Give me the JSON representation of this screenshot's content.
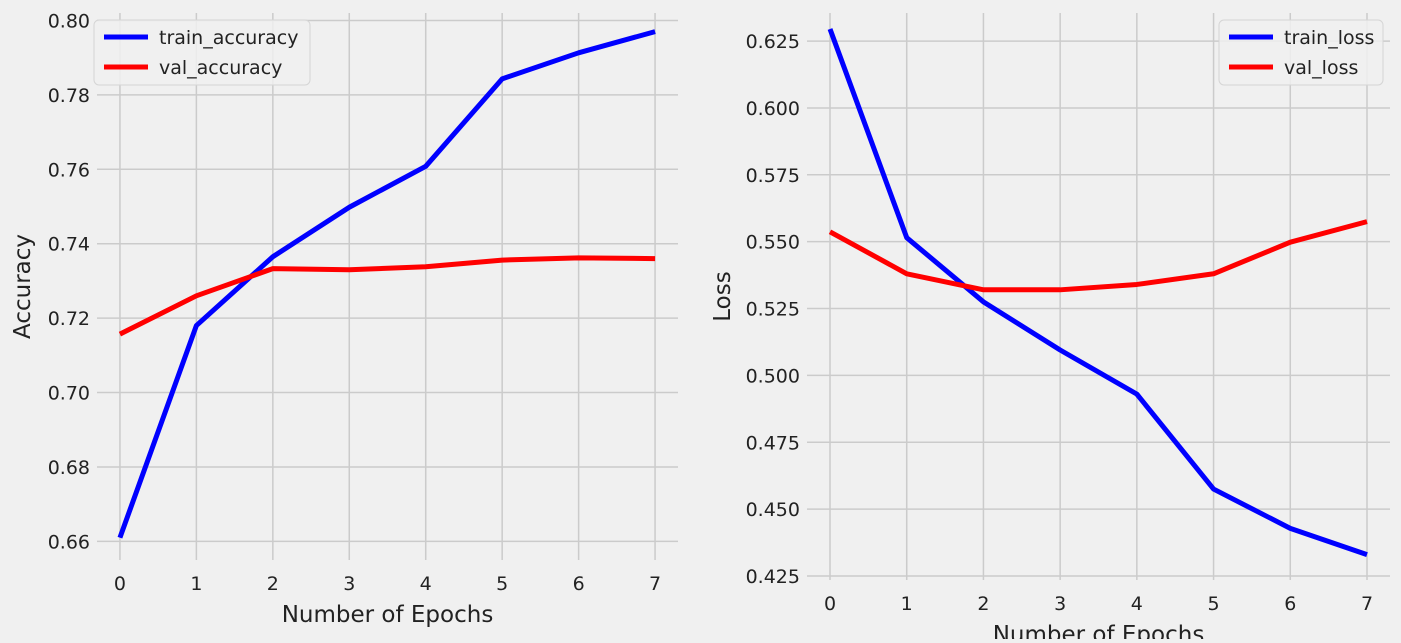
{
  "chart_data": [
    {
      "type": "line",
      "title": "",
      "xlabel": "Number of Epochs",
      "ylabel": "Accuracy",
      "x": [
        0,
        1,
        2,
        3,
        4,
        5,
        6,
        7
      ],
      "xlim": [
        -0.3,
        7.3
      ],
      "ylim": [
        0.655,
        0.802
      ],
      "xticks": [
        0,
        1,
        2,
        3,
        4,
        5,
        6,
        7
      ],
      "yticks": [
        0.66,
        0.68,
        0.7,
        0.72,
        0.74,
        0.76,
        0.78,
        0.8
      ],
      "yticks_labels": [
        "0.66",
        "0.68",
        "0.70",
        "0.72",
        "0.74",
        "0.76",
        "0.78",
        "0.80"
      ],
      "grid": true,
      "legend_position": "top-left",
      "series": [
        {
          "name": "train_accuracy",
          "color": "#0000ff",
          "values": [
            0.661,
            0.718,
            0.7365,
            0.7498,
            0.7608,
            0.7843,
            0.7913,
            0.797
          ]
        },
        {
          "name": "val_accuracy",
          "color": "#ff0000",
          "values": [
            0.7157,
            0.726,
            0.7333,
            0.733,
            0.7338,
            0.7356,
            0.7362,
            0.736
          ]
        }
      ]
    },
    {
      "type": "line",
      "title": "",
      "xlabel": "Number of Epochs",
      "ylabel": "Loss",
      "x": [
        0,
        1,
        2,
        3,
        4,
        5,
        6,
        7
      ],
      "xlim": [
        -0.3,
        7.3
      ],
      "ylim": [
        0.4235,
        0.6355
      ],
      "xticks": [
        0,
        1,
        2,
        3,
        4,
        5,
        6,
        7
      ],
      "yticks": [
        0.425,
        0.45,
        0.475,
        0.5,
        0.525,
        0.55,
        0.575,
        0.6,
        0.625
      ],
      "yticks_labels": [
        "0.425",
        "0.450",
        "0.475",
        "0.500",
        "0.525",
        "0.550",
        "0.575",
        "0.600",
        "0.625"
      ],
      "grid": true,
      "legend_position": "top-right",
      "series": [
        {
          "name": "train_loss",
          "color": "#0000ff",
          "values": [
            0.6295,
            0.5515,
            0.5275,
            0.5095,
            0.493,
            0.4575,
            0.4428,
            0.433
          ]
        },
        {
          "name": "val_loss",
          "color": "#ff0000",
          "values": [
            0.5537,
            0.538,
            0.532,
            0.532,
            0.534,
            0.538,
            0.5498,
            0.5575
          ]
        }
      ]
    }
  ]
}
